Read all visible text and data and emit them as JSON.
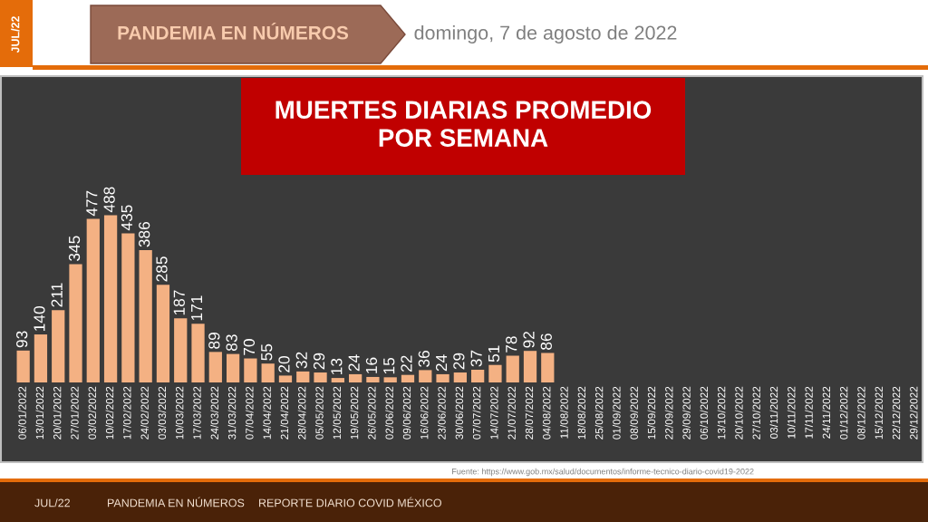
{
  "chart_data": {
    "type": "bar",
    "title": "MUERTES DIARIAS PROMEDIO\nPOR SEMANA",
    "subtitle": "domingo, 7 de agosto de 2022",
    "categories": [
      "06/01/2022",
      "13/01/2022",
      "20/01/2022",
      "27/01/2022",
      "03/02/2022",
      "10/02/2022",
      "17/02/2022",
      "24/02/2022",
      "03/03/2022",
      "10/03/2022",
      "17/03/2022",
      "24/03/2022",
      "31/03/2022",
      "07/04/2022",
      "14/04/2022",
      "21/04/2022",
      "28/04/2022",
      "05/05/2022",
      "12/05/2022",
      "19/05/2022",
      "26/05/2022",
      "02/06/2022",
      "09/06/2022",
      "16/06/2022",
      "23/06/2022",
      "30/06/2022",
      "07/07/2022",
      "14/07/2022",
      "21/07/2022",
      "28/07/2022",
      "04/08/2022",
      "11/08/2022",
      "18/08/2022",
      "25/08/2022",
      "01/09/2022",
      "08/09/2022",
      "15/09/2022",
      "22/09/2022",
      "29/09/2022",
      "06/10/2022",
      "13/10/2022",
      "20/10/2022",
      "27/10/2022",
      "03/11/2022",
      "10/11/2022",
      "17/11/2022",
      "24/11/2022",
      "01/12/2022",
      "08/12/2022",
      "15/12/2022",
      "22/12/2022",
      "29/12/2022"
    ],
    "values": [
      93,
      140,
      211,
      345,
      477,
      488,
      435,
      386,
      285,
      187,
      171,
      89,
      83,
      70,
      55,
      20,
      32,
      29,
      13,
      24,
      16,
      15,
      22,
      36,
      24,
      29,
      37,
      51,
      78,
      92,
      86,
      null,
      null,
      null,
      null,
      null,
      null,
      null,
      null,
      null,
      null,
      null,
      null,
      null,
      null,
      null,
      null,
      null,
      null,
      null,
      null,
      null
    ],
    "color": "#f4b183",
    "data_labels": true,
    "tick_labels": "x",
    "annotations": [
      "JUL/22",
      "PANDEMIA EN NÚMEROS",
      "Fuente: https://www.gob.mx/salud/documentos/informe-tecnico-diario-covid19-2022",
      "JUL/22",
      "PANDEMIA EN NÚMEROS",
      "REPORTE DIARIO COVID MÉXICO"
    ]
  }
}
